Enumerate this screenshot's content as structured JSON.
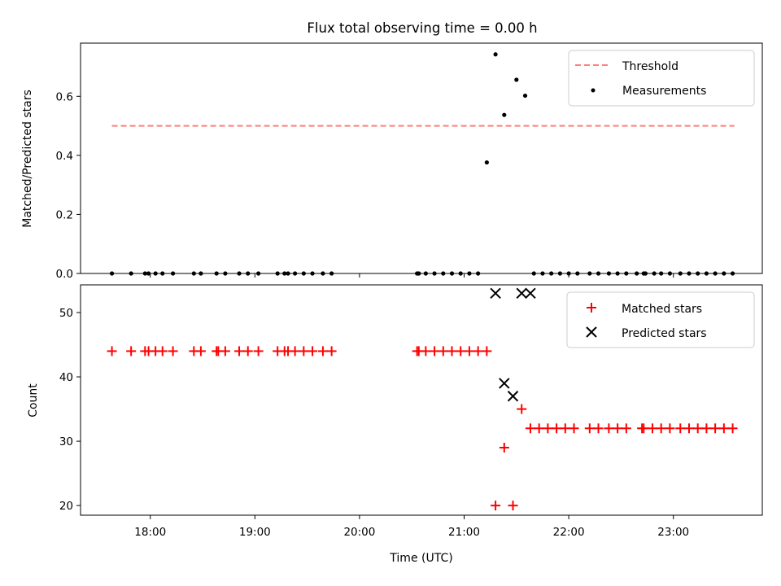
{
  "chart_data": [
    {
      "type": "scatter",
      "title": "Flux total observing time = 0.00 h",
      "xlabel": "",
      "ylabel": "Matched/Predicted stars",
      "ylim": [
        0,
        0.78
      ],
      "xlim": [
        "17:20",
        "23:51"
      ],
      "yticks": [
        "0.0",
        "0.2",
        "0.4",
        "0.6"
      ],
      "threshold": {
        "value": 0.5,
        "x_start": "17:38",
        "x_end": "23:35",
        "color": "#ff7f7f",
        "style": "dashed"
      },
      "series": [
        {
          "name": "Measurements",
          "color": "#000000",
          "x": [
            "17:38",
            "17:49",
            "17:57",
            "17:59",
            "18:03",
            "18:07",
            "18:13",
            "18:25",
            "18:29",
            "18:38",
            "18:43",
            "18:51",
            "18:56",
            "19:02",
            "19:13",
            "19:17",
            "19:19",
            "19:23",
            "19:28",
            "19:33",
            "19:39",
            "19:44",
            "20:33",
            "20:34",
            "20:38",
            "20:43",
            "20:48",
            "20:53",
            "20:58",
            "21:03",
            "21:08",
            "21:13",
            "21:18",
            "21:23",
            "21:30",
            "21:35",
            "21:40",
            "21:45",
            "21:50",
            "21:55",
            "22:00",
            "22:05",
            "22:12",
            "22:17",
            "22:23",
            "22:28",
            "22:33",
            "22:39",
            "22:43",
            "22:44",
            "22:49",
            "22:53",
            "22:58",
            "23:04",
            "23:09",
            "23:14",
            "23:19",
            "23:24",
            "23:29",
            "23:34"
          ],
          "y": [
            0,
            0,
            0,
            0,
            0,
            0,
            0,
            0,
            0,
            0,
            0,
            0,
            0,
            0,
            0,
            0,
            0,
            0,
            0,
            0,
            0,
            0,
            0,
            0,
            0,
            0,
            0,
            0,
            0,
            0,
            0,
            0.376,
            0.742,
            0.537,
            0.656,
            0.602,
            0,
            0,
            0,
            0,
            0,
            0,
            0,
            0,
            0,
            0,
            0,
            0,
            0,
            0,
            0,
            0,
            0,
            0,
            0,
            0,
            0,
            0,
            0,
            0
          ]
        }
      ],
      "legend": {
        "location": "top-right",
        "entries": [
          "Threshold",
          "Measurements"
        ]
      }
    },
    {
      "type": "scatter",
      "title": "",
      "xlabel": "Time (UTC)",
      "ylabel": "Count",
      "ylim": [
        18.5,
        54.3
      ],
      "xlim": [
        "17:20",
        "23:51"
      ],
      "xticks": [
        "18:00",
        "19:00",
        "20:00",
        "21:00",
        "22:00",
        "23:00"
      ],
      "yticks": [
        "20",
        "30",
        "40",
        "50"
      ],
      "series": [
        {
          "name": "Matched stars",
          "color": "#ff0000",
          "marker": "plus",
          "x": [
            "17:38",
            "17:49",
            "17:57",
            "17:59",
            "18:03",
            "18:07",
            "18:13",
            "18:25",
            "18:29",
            "18:38",
            "18:39",
            "18:43",
            "18:51",
            "18:56",
            "19:02",
            "19:13",
            "19:17",
            "19:19",
            "19:23",
            "19:28",
            "19:33",
            "19:39",
            "19:44",
            "20:33",
            "20:34",
            "20:38",
            "20:43",
            "20:48",
            "20:53",
            "20:58",
            "21:03",
            "21:08",
            "21:13",
            "21:18",
            "21:23",
            "21:28",
            "21:33",
            "21:38",
            "21:43",
            "21:48",
            "21:53",
            "21:58",
            "22:03",
            "22:12",
            "22:17",
            "22:23",
            "22:28",
            "22:33",
            "22:42",
            "22:43",
            "22:48",
            "22:53",
            "22:58",
            "23:04",
            "23:09",
            "23:14",
            "23:19",
            "23:24",
            "23:29",
            "23:34"
          ],
          "y": [
            44,
            44,
            44,
            44,
            44,
            44,
            44,
            44,
            44,
            44,
            44,
            44,
            44,
            44,
            44,
            44,
            44,
            44,
            44,
            44,
            44,
            44,
            44,
            44,
            44,
            44,
            44,
            44,
            44,
            44,
            44,
            44,
            44,
            20,
            29,
            20,
            35,
            32,
            32,
            32,
            32,
            32,
            32,
            32,
            32,
            32,
            32,
            32,
            32,
            32,
            32,
            32,
            32,
            32,
            32,
            32,
            32,
            32,
            32,
            32
          ]
        },
        {
          "name": "Predicted stars",
          "color": "#000000",
          "marker": "x",
          "x": [
            "21:18",
            "21:23",
            "21:28",
            "21:33",
            "21:38"
          ],
          "y": [
            53,
            39,
            37,
            53,
            53
          ]
        }
      ],
      "legend": {
        "location": "top-right",
        "entries": [
          "Matched stars",
          "Predicted stars"
        ]
      }
    }
  ]
}
